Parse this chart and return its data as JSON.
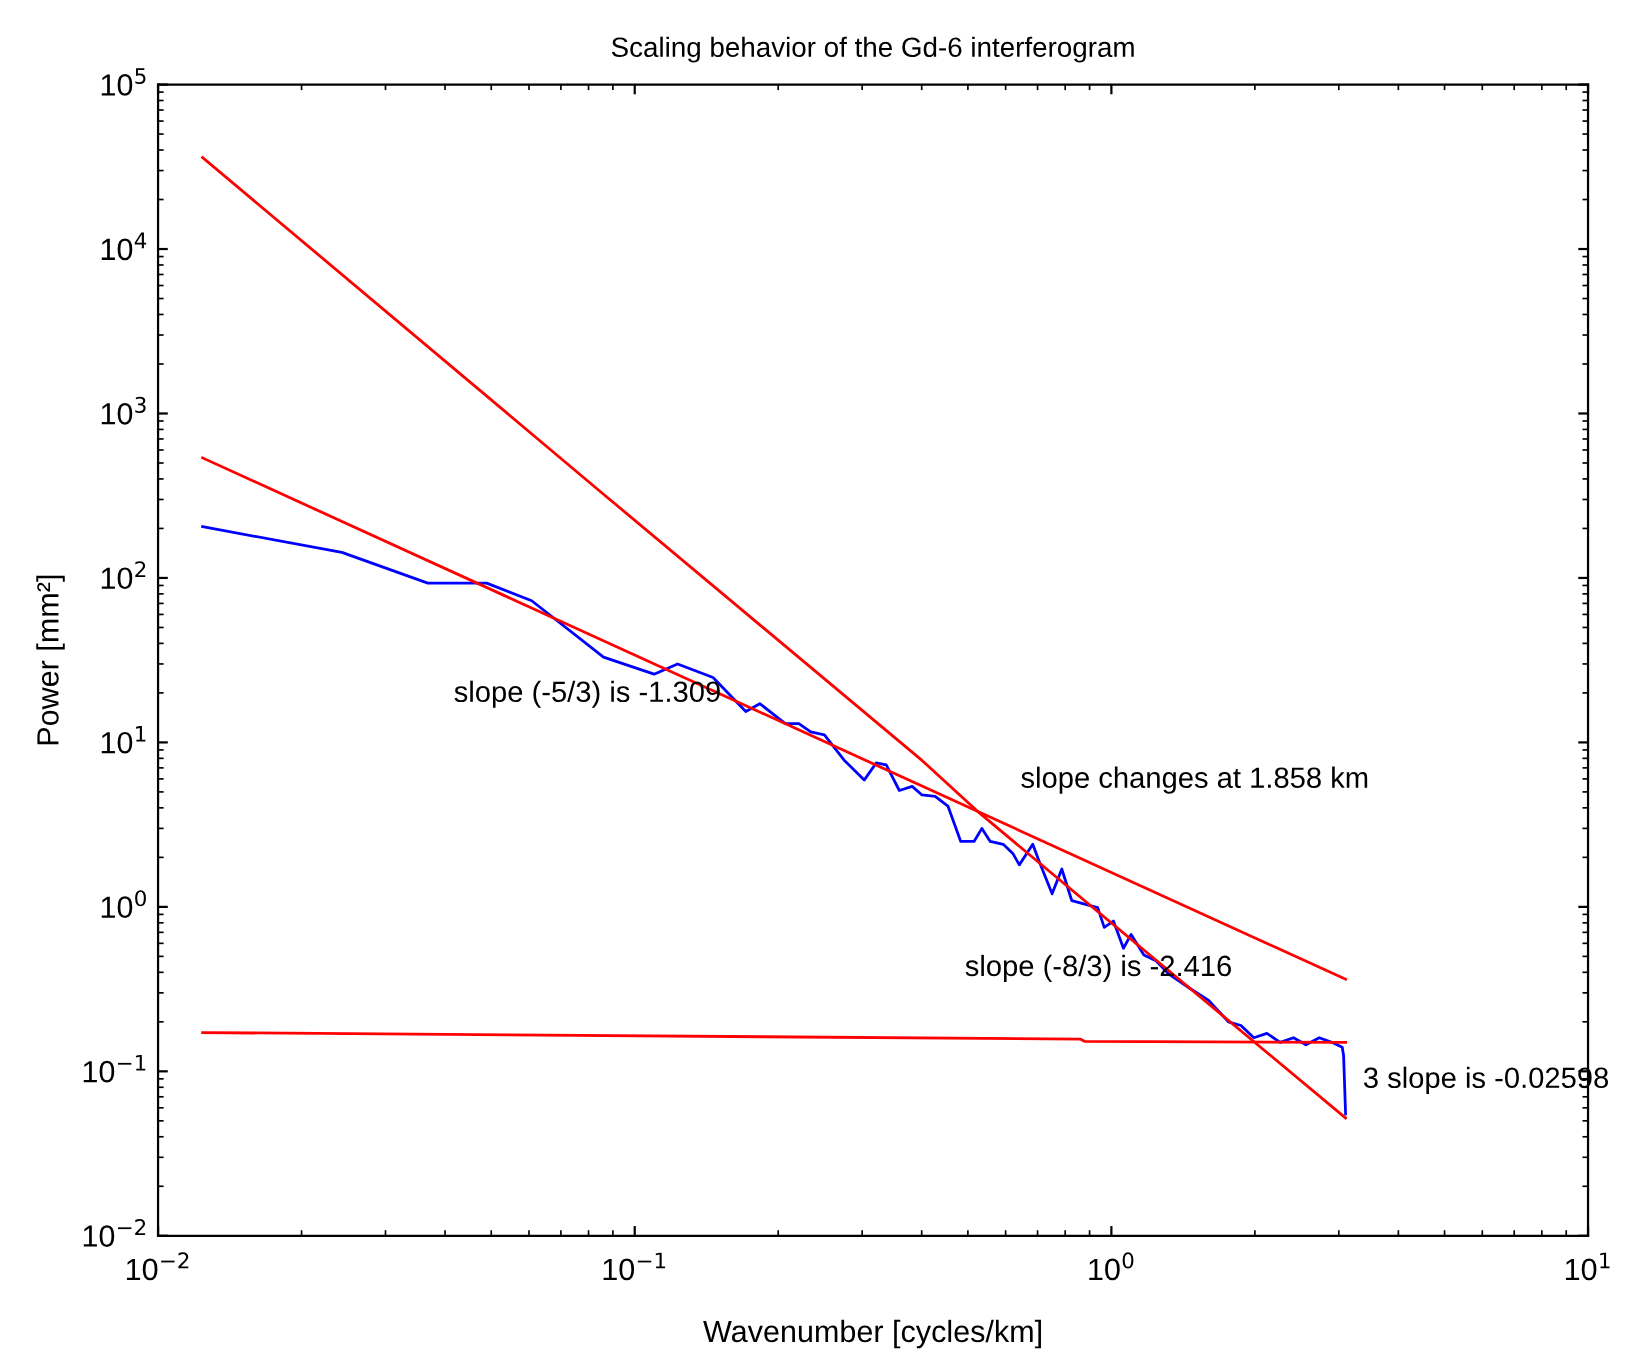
{
  "chart_data": {
    "type": "line",
    "title": "Scaling behavior of the Gd-6 interferogram",
    "xlabel": "Wavenumber [cycles/km]",
    "ylabel": "Power [mm²]",
    "log": "xy",
    "grid": false,
    "legend": false,
    "marker": "none",
    "line_style": "solid",
    "xlim": [
      0.01,
      10
    ],
    "ylim": [
      0.01,
      100000
    ],
    "xticks": [
      {
        "value": 0.01,
        "label": "10$^{−2}$"
      },
      {
        "value": 0.1,
        "label": "10$^{−1}$"
      },
      {
        "value": 1,
        "label": "10$^{0}$"
      },
      {
        "value": 10,
        "label": "10$^{1}$"
      }
    ],
    "yticks": [
      {
        "value": 0.01,
        "label": "10$^{−2}$"
      },
      {
        "value": 0.1,
        "label": "10$^{−1}$"
      },
      {
        "value": 1,
        "label": "10$^{0}$"
      },
      {
        "value": 10,
        "label": "10$^{1}$"
      },
      {
        "value": 100,
        "label": "10$^{2}$"
      },
      {
        "value": 1000,
        "label": "10$^{3}$"
      },
      {
        "value": 10000,
        "label": "10$^{4}$"
      },
      {
        "value": 100000,
        "label": "10$^{5}$"
      }
    ],
    "series": [
      {
        "color": "#0000ff",
        "x": [
          0.0124,
          0.0243,
          0.0368,
          0.0489,
          0.0608,
          0.086,
          0.1098,
          0.123,
          0.146,
          0.171,
          0.183,
          0.207,
          0.221,
          0.234,
          0.25,
          0.275,
          0.303,
          0.321,
          0.337,
          0.359,
          0.382,
          0.4,
          0.427,
          0.454,
          0.483,
          0.515,
          0.535,
          0.557,
          0.593,
          0.622,
          0.641,
          0.684,
          0.705,
          0.751,
          0.787,
          0.826,
          0.879,
          0.936,
          0.966,
          1.01,
          1.06,
          1.1,
          1.17,
          1.24,
          1.32,
          1.46,
          1.6,
          1.76,
          1.87,
          1.99,
          2.12,
          2.26,
          2.41,
          2.56,
          2.73,
          2.9,
          3.05,
          3.07,
          3.1
        ],
        "values": [
          205,
          143,
          93,
          93,
          72.7,
          33,
          26,
          30,
          24.8,
          15.4,
          17.2,
          13,
          13,
          11.6,
          11.1,
          7.8,
          5.9,
          7.5,
          7.3,
          5.1,
          5.4,
          4.8,
          4.7,
          4.1,
          2.5,
          2.5,
          3.0,
          2.5,
          2.4,
          2.1,
          1.8,
          2.4,
          1.9,
          1.2,
          1.7,
          1.09,
          1.04,
          0.99,
          0.75,
          0.82,
          0.56,
          0.68,
          0.51,
          0.47,
          0.39,
          0.32,
          0.27,
          0.2,
          0.19,
          0.16,
          0.17,
          0.15,
          0.16,
          0.145,
          0.16,
          0.15,
          0.14,
          0.125,
          0.055
        ]
      },
      {
        "color": "#ff0000",
        "x": [
          0.0124,
          0.086,
          0.4,
          0.53,
          3.1
        ],
        "values": [
          36000,
          323,
          7.8,
          3.7,
          0.052
        ]
      },
      {
        "color": "#ff0000",
        "x": [
          0.0124,
          3.1
        ],
        "values": [
          537,
          0.363
        ]
      },
      {
        "color": "#ff0000",
        "x": [
          0.0124,
          0.86,
          0.88,
          3.1
        ],
        "values": [
          0.172,
          0.157,
          0.152,
          0.15
        ]
      }
    ],
    "annotations": [
      "slope (-5/3) is -1.309",
      "slope changes at 1.858 km",
      "slope (-8/3) is -2.416",
      "3 slope is -0.02598"
    ]
  }
}
